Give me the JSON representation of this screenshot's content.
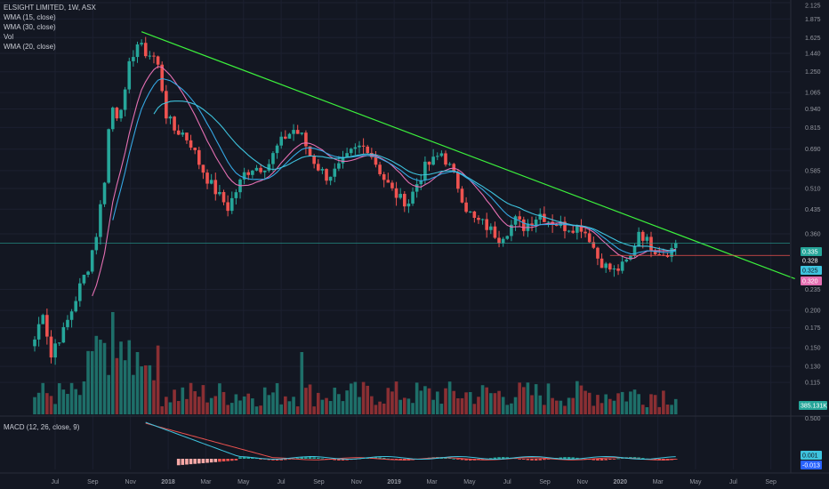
{
  "header": {
    "symbol_line": "ELSIGHT LIMITED, 1W, ASX",
    "indicators": [
      "WMA (15, close)",
      "WMA (30, close)",
      "Vol",
      "WMA (20, close)"
    ]
  },
  "macd_label": "MACD (12, 26, close, 9)",
  "colors": {
    "background": "#131722",
    "up": "#26a69a",
    "down": "#ef5350",
    "vol_up": "#1e6f69",
    "vol_down": "#8a2f33",
    "wma15": "#e46fb2",
    "wma30": "#3ec3de",
    "wma20": "#35a7e3",
    "trendline": "#3cf03c",
    "macd": "#3ec3de",
    "signal": "#ef5350"
  },
  "chart_data": {
    "type": "candlestick",
    "title": "ELSIGHT LIMITED, 1W, ASX",
    "y_scale": "log",
    "ylim": [
      0.09,
      2.125
    ],
    "y_ticks": [
      "2.125",
      "1.875",
      "1.625",
      "1.440",
      "1.250",
      "1.065",
      "0.940",
      "0.815",
      "0.690",
      "0.585",
      "0.510",
      "0.435",
      "0.360",
      "0.235",
      "0.200",
      "0.175",
      "0.150",
      "0.130",
      "0.115"
    ],
    "x_ticks": [
      "Jul",
      "Sep",
      "Nov",
      "2018",
      "Mar",
      "May",
      "Jul",
      "Sep",
      "Nov",
      "2019",
      "Mar",
      "May",
      "Jul",
      "Sep",
      "Nov",
      "2020",
      "Mar",
      "May",
      "Jul",
      "Sep"
    ],
    "price_anchors": [
      [
        0,
        0.16
      ],
      [
        2,
        0.2
      ],
      [
        4,
        0.14
      ],
      [
        5,
        0.155
      ],
      [
        7,
        0.17
      ],
      [
        9,
        0.2
      ],
      [
        11,
        0.24
      ],
      [
        13,
        0.28
      ],
      [
        15,
        0.36
      ],
      [
        17,
        0.55
      ],
      [
        18,
        0.8
      ],
      [
        19,
        0.95
      ],
      [
        20,
        0.9
      ],
      [
        22,
        1.05
      ],
      [
        23,
        1.3
      ],
      [
        24,
        1.45
      ],
      [
        25,
        1.55
      ],
      [
        27,
        1.45
      ],
      [
        29,
        1.4
      ],
      [
        30,
        1.3
      ],
      [
        31,
        1.1
      ],
      [
        32,
        0.9
      ],
      [
        34,
        0.8
      ],
      [
        36,
        0.78
      ],
      [
        38,
        0.72
      ],
      [
        40,
        0.62
      ],
      [
        42,
        0.55
      ],
      [
        44,
        0.5
      ],
      [
        46,
        0.46
      ],
      [
        47,
        0.44
      ],
      [
        49,
        0.5
      ],
      [
        51,
        0.57
      ],
      [
        53,
        0.6
      ],
      [
        55,
        0.6
      ],
      [
        57,
        0.62
      ],
      [
        59,
        0.7
      ],
      [
        61,
        0.76
      ],
      [
        63,
        0.8
      ],
      [
        65,
        0.76
      ],
      [
        67,
        0.66
      ],
      [
        69,
        0.6
      ],
      [
        71,
        0.56
      ],
      [
        73,
        0.58
      ],
      [
        75,
        0.62
      ],
      [
        77,
        0.67
      ],
      [
        79,
        0.7
      ],
      [
        81,
        0.7
      ],
      [
        83,
        0.62
      ],
      [
        85,
        0.55
      ],
      [
        87,
        0.5
      ],
      [
        89,
        0.47
      ],
      [
        91,
        0.46
      ],
      [
        93,
        0.53
      ],
      [
        95,
        0.6
      ],
      [
        97,
        0.63
      ],
      [
        99,
        0.67
      ],
      [
        101,
        0.6
      ],
      [
        103,
        0.52
      ],
      [
        105,
        0.44
      ],
      [
        107,
        0.4
      ],
      [
        109,
        0.39
      ],
      [
        111,
        0.37
      ],
      [
        113,
        0.35
      ],
      [
        115,
        0.37
      ],
      [
        117,
        0.4
      ],
      [
        119,
        0.38
      ],
      [
        121,
        0.4
      ],
      [
        123,
        0.42
      ],
      [
        125,
        0.4
      ],
      [
        127,
        0.39
      ],
      [
        129,
        0.38
      ],
      [
        131,
        0.38
      ],
      [
        133,
        0.38
      ],
      [
        135,
        0.35
      ],
      [
        137,
        0.3
      ],
      [
        139,
        0.28
      ],
      [
        141,
        0.27
      ],
      [
        143,
        0.28
      ],
      [
        145,
        0.3
      ],
      [
        147,
        0.37
      ],
      [
        149,
        0.34
      ],
      [
        151,
        0.32
      ],
      [
        153,
        0.31
      ],
      [
        155,
        0.32
      ],
      [
        156,
        0.335
      ]
    ],
    "trendline": {
      "from": [
        26,
        1.7
      ],
      "to": [
        185,
        0.255
      ]
    },
    "horizontal_levels": [
      0.335,
      0.305
    ],
    "last_values": {
      "close": "0.335",
      "wma20": "0.328",
      "wma30": "0.325",
      "wma15": "0.320"
    },
    "volume_last": "385.131K",
    "macd": {
      "y_ticks": [
        "0.500"
      ],
      "last_values": {
        "macd": "0.001",
        "histogram": "-0.013"
      }
    }
  }
}
